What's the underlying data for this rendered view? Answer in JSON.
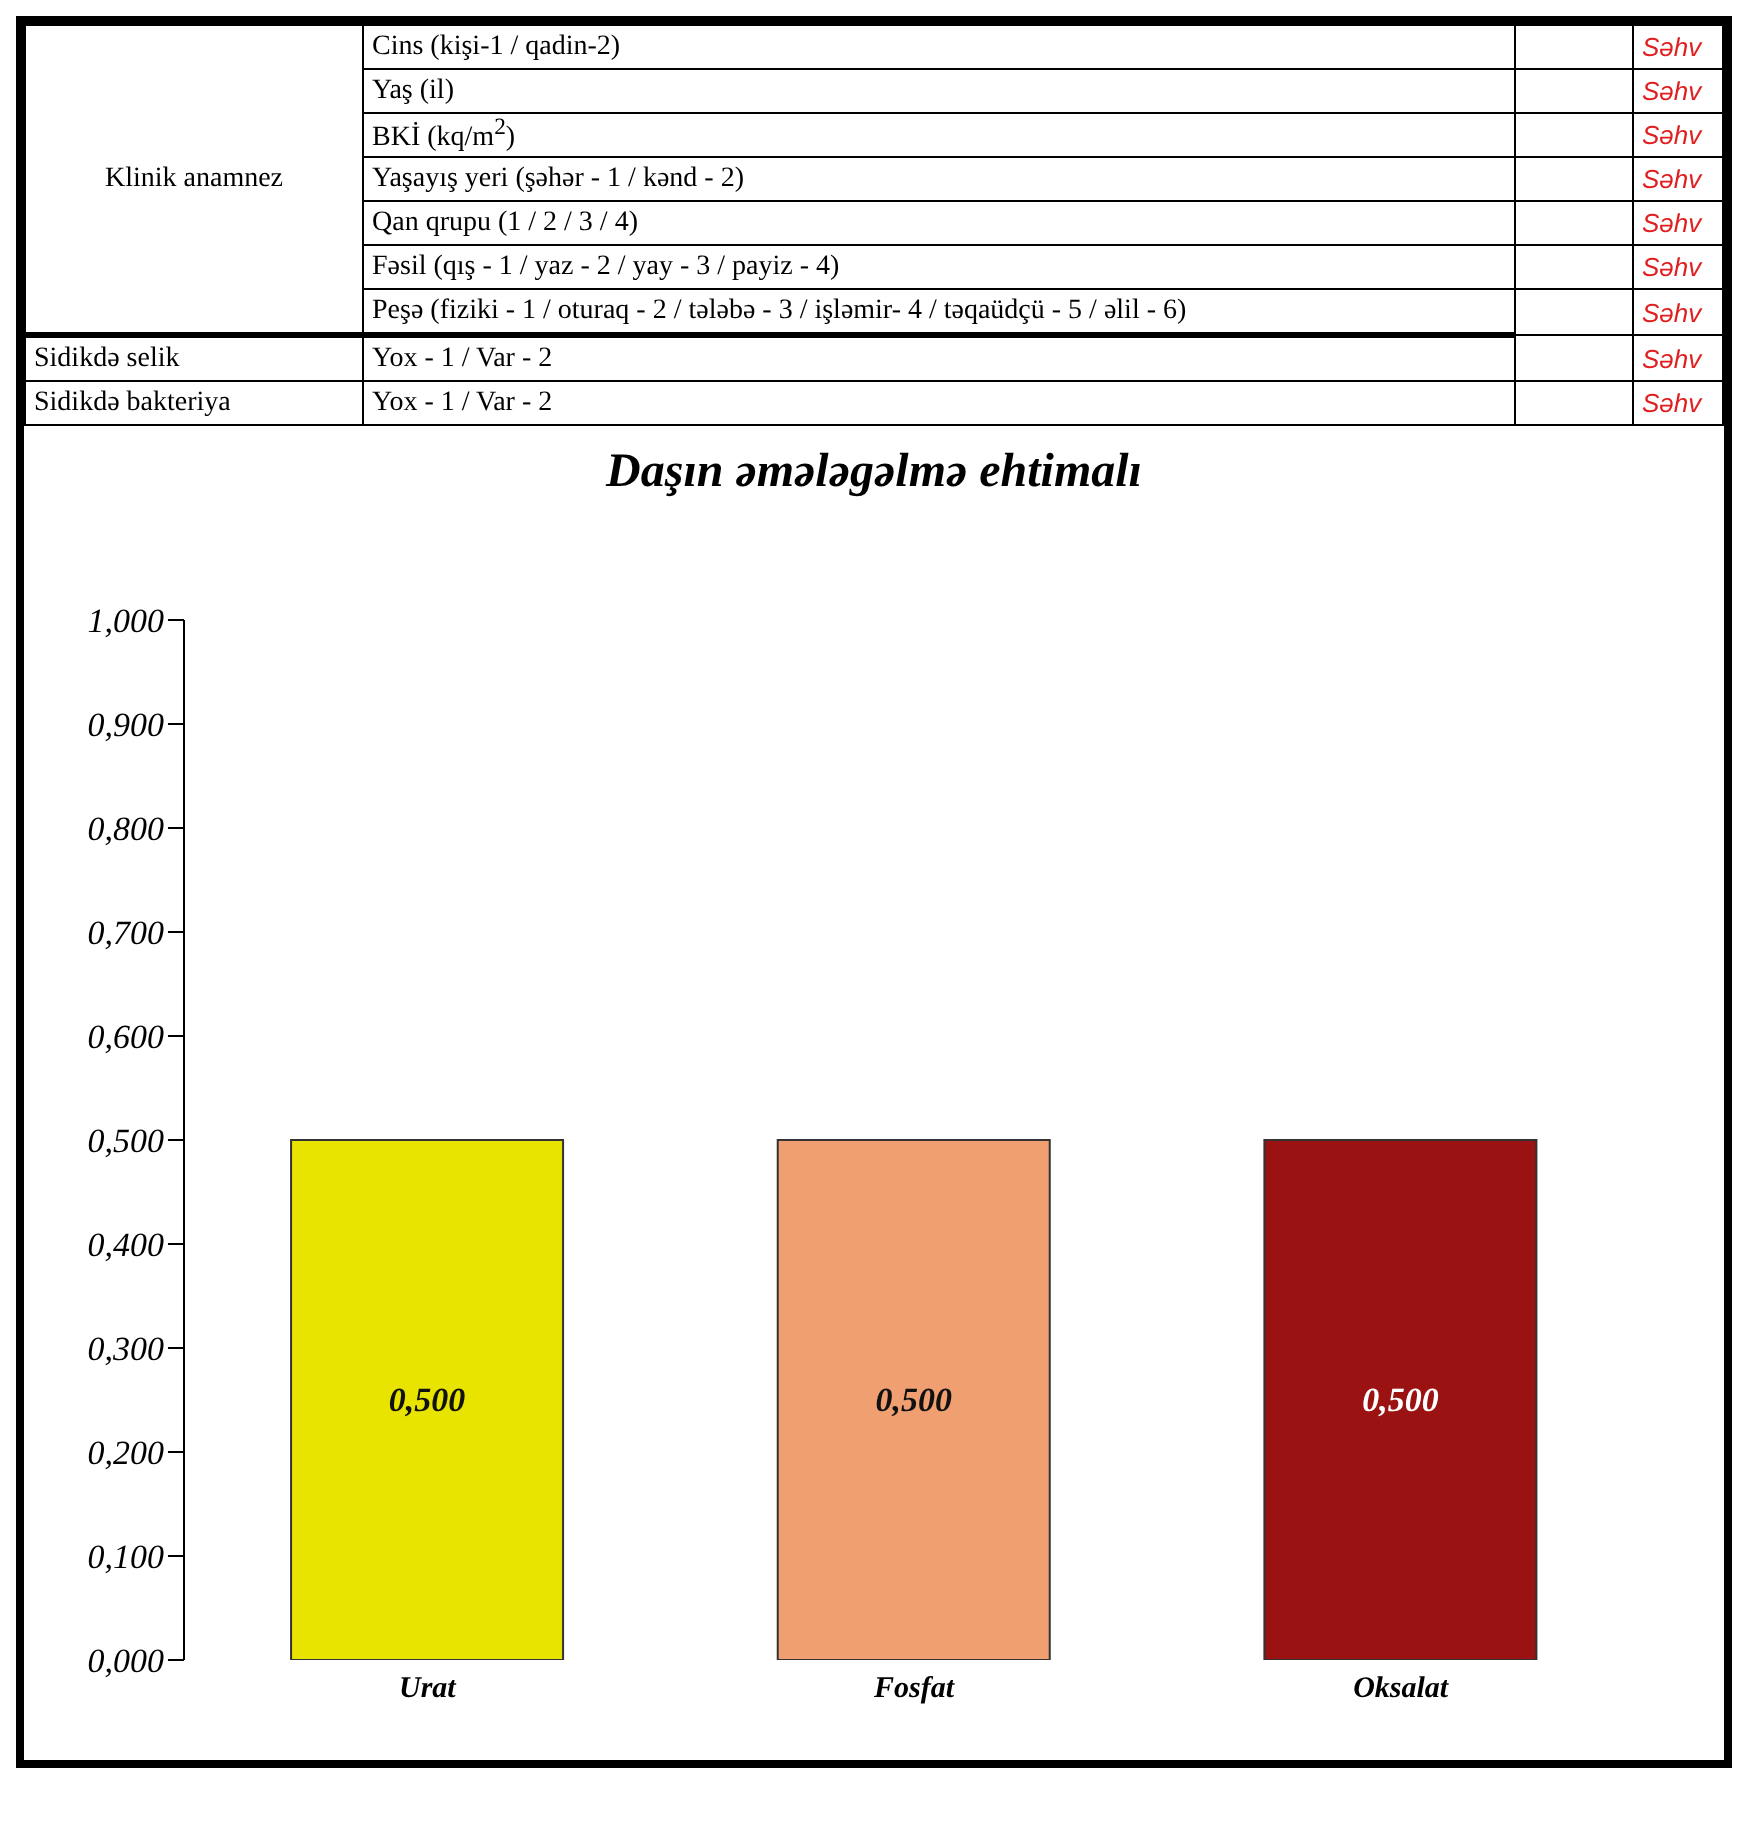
{
  "chart_data": [
    {
      "type": "other",
      "annotations": [
        "Klinik anamnez",
        "Cins (kişi-1 / qadin-2)",
        "Yaş (il)",
        "BKİ (kq/m$^{2}$)",
        "Yaşayış yeri (şəhər - 1 / kənd - 2)",
        "Qan qrupu (1 / 2 / 3 / 4)",
        "Fəsil (qış - 1 / yaz - 2 / yay - 3 / payiz - 4)",
        "Peşə (fiziki - 1 / oturaq - 2 / tələbə - 3 / işləmir- 4 / təqaüdçü - 5 / əlil - 6)",
        "Sidikdə selik",
        "Yox - 1 / Var - 2",
        "Sidikdə bakteriya",
        "Yox - 1 / Var - 2",
        "Səhv",
        "Səhv",
        "Səhv",
        "Səhv",
        "Səhv",
        "Səhv",
        "Səhv",
        "Səhv",
        "Səhv"
      ]
    },
    {
      "type": "bar",
      "title": "Daşın əmələgəlmə ehtimalı",
      "categories": [
        "Urat",
        "Fosfat",
        "Oksalat"
      ],
      "values": [
        0.5,
        0.5,
        0.5
      ],
      "colors": [
        "#e8e400",
        "#f0a070",
        "#9a1212"
      ],
      "value_labels": [
        "0,500",
        "0,500",
        "0,500"
      ],
      "ylim": [
        0,
        1
      ],
      "yticks": [
        {
          "value": 0,
          "label": "0,000"
        },
        {
          "value": 0.1,
          "label": "0,100"
        },
        {
          "value": 0.2,
          "label": "0,200"
        },
        {
          "value": 0.3,
          "label": "0,300"
        },
        {
          "value": 0.4,
          "label": "0,400"
        },
        {
          "value": 0.5,
          "label": "0,500"
        },
        {
          "value": 0.6,
          "label": "0,600"
        },
        {
          "value": 0.7,
          "label": "0,700"
        },
        {
          "value": 0.8,
          "label": "0,800"
        },
        {
          "value": 0.9,
          "label": "0,900"
        },
        {
          "value": 1,
          "label": "1,000"
        }
      ],
      "grid": false,
      "legend": false
    }
  ]
}
